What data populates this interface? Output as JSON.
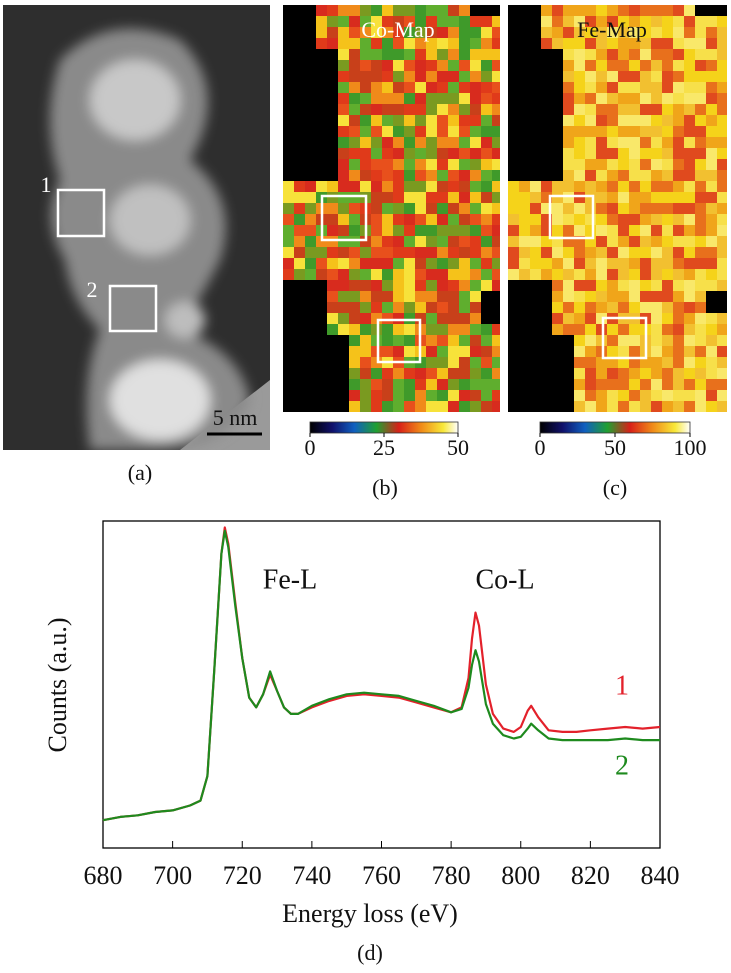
{
  "panels": [
    {
      "label": "(a)",
      "scale_bar": "5 nm",
      "boxes": [
        "1",
        "2"
      ]
    },
    {
      "label": "(b)",
      "title": "Co-Map",
      "colorbar_ticks": [
        0,
        25,
        50
      ]
    },
    {
      "label": "(c)",
      "title": "Fe-Map",
      "colorbar_ticks": [
        0,
        50,
        100
      ]
    }
  ],
  "chart_data": {
    "type": "line",
    "label": "(d)",
    "annotations": [
      "Fe-L",
      "Co-L"
    ],
    "xlabel": "Energy loss (eV)",
    "ylabel": "Counts (a.u.)",
    "x": [
      680,
      685,
      690,
      695,
      700,
      705,
      708,
      710,
      712,
      714,
      715,
      716,
      718,
      720,
      722,
      724,
      726,
      728,
      730,
      732,
      734,
      736,
      740,
      745,
      750,
      755,
      760,
      765,
      770,
      775,
      780,
      783,
      785,
      786,
      787,
      788,
      790,
      792,
      795,
      798,
      800,
      802,
      803,
      805,
      808,
      812,
      816,
      820,
      825,
      830,
      835,
      840
    ],
    "series": [
      {
        "name": "1",
        "color": "#e3212b",
        "values": [
          8.5,
          9.5,
          10,
          11,
          11.5,
          13,
          14.5,
          22,
          55,
          90,
          98,
          93,
          75,
          58,
          46,
          43,
          47,
          53,
          48,
          43,
          41,
          41,
          43,
          45,
          46.5,
          47,
          46.5,
          46,
          44.5,
          43,
          41.5,
          43,
          52,
          64,
          72,
          68,
          50,
          41,
          36.5,
          35.5,
          37,
          42,
          43.5,
          40,
          36,
          35.5,
          35.5,
          36,
          36.5,
          37,
          36.5,
          37
        ]
      },
      {
        "name": "2",
        "color": "#1e8a1e",
        "values": [
          8.5,
          9.5,
          10,
          11,
          11.5,
          13,
          14.5,
          22,
          55,
          90,
          97,
          92,
          74,
          58,
          46,
          43,
          47,
          54,
          48,
          43,
          41,
          41,
          43.5,
          45.5,
          47,
          47.5,
          47,
          46.5,
          45,
          43.5,
          41.5,
          42.5,
          49,
          56,
          60.5,
          57,
          44,
          38,
          34.5,
          33.5,
          34,
          36.5,
          38,
          36,
          33.5,
          33,
          33,
          33,
          33,
          33.5,
          33,
          33
        ]
      }
    ],
    "xlim": [
      680,
      840
    ],
    "ylim": [
      0,
      100
    ],
    "xticks": [
      680,
      700,
      720,
      740,
      760,
      780,
      800,
      820,
      840
    ]
  }
}
